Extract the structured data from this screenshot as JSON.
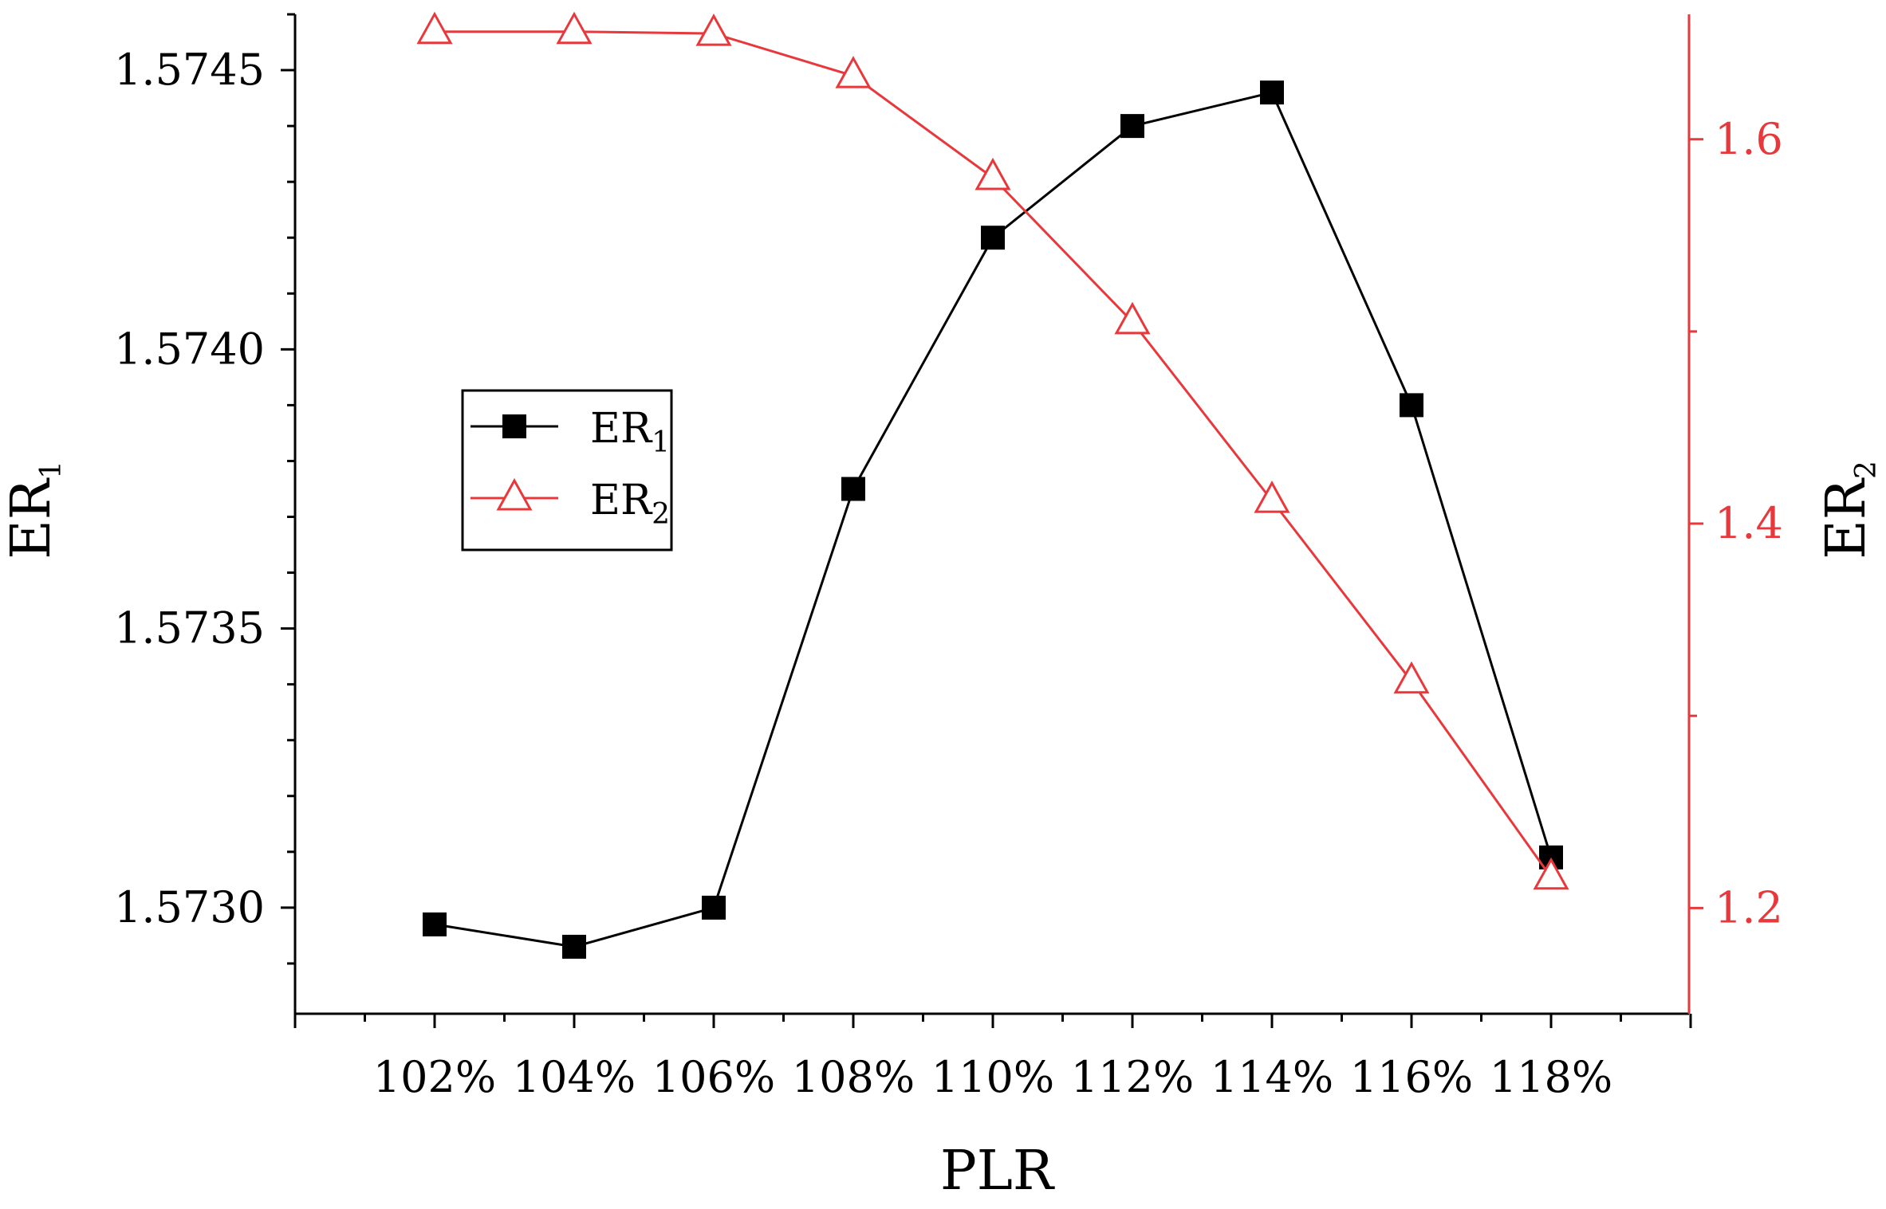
{
  "chart_data": {
    "type": "line",
    "x": [
      "102%",
      "104%",
      "106%",
      "108%",
      "110%",
      "112%",
      "114%",
      "116%",
      "118%"
    ],
    "xlabel": "PLR",
    "ylabel_left": {
      "main": "ER",
      "sub": "1"
    },
    "ylabel_right": {
      "main": "ER",
      "sub": "2"
    },
    "ylim_left": [
      1.57281,
      1.5746
    ],
    "ylim_right": [
      1.145,
      1.665
    ],
    "yticks_left": [
      "1.5730",
      "1.5735",
      "1.5740",
      "1.5745"
    ],
    "yticks_left_values": [
      1.573,
      1.5735,
      1.574,
      1.5745
    ],
    "yticks_right": [
      "1.2",
      "1.4",
      "1.6"
    ],
    "yticks_right_values": [
      1.2,
      1.4,
      1.6
    ],
    "legend_position": "middle-left",
    "grid": false,
    "series": [
      {
        "name": "ER1",
        "name_main": "ER",
        "name_sub": "1",
        "axis": "left",
        "marker": "filled-square",
        "color": "#000000",
        "values": [
          1.57297,
          1.57293,
          1.573,
          1.57375,
          1.5742,
          1.5744,
          1.57446,
          1.5739,
          1.57309
        ]
      },
      {
        "name": "ER2",
        "name_main": "ER",
        "name_sub": "2",
        "axis": "right",
        "marker": "open-triangle",
        "color": "#e8383c",
        "values": [
          1.656,
          1.656,
          1.655,
          1.633,
          1.58,
          1.505,
          1.412,
          1.318,
          1.216
        ]
      }
    ]
  }
}
